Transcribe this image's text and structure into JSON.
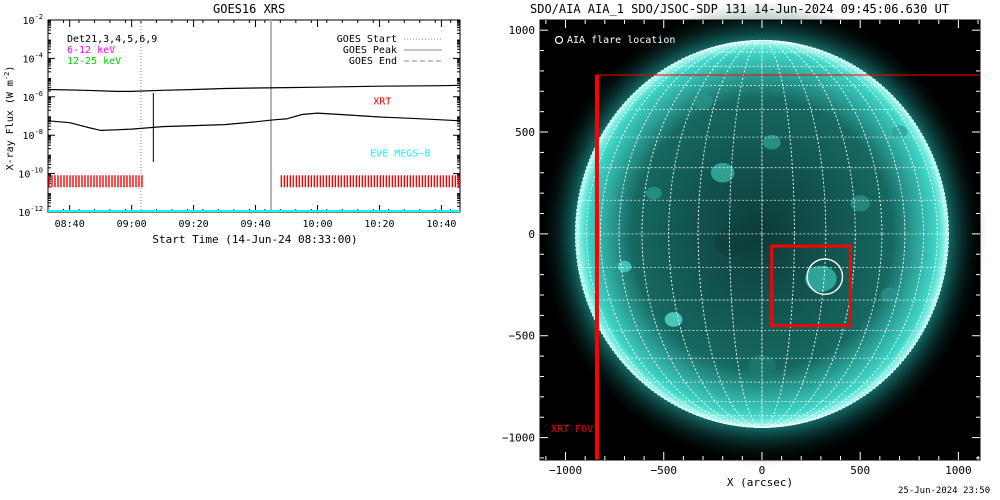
{
  "left_title": "GOES16 XRS",
  "right_title": "SDO/AIA AIA_1 SDO/JSOC-SDP 131 14-Jun-2024 09:45:06.630 UT",
  "timestamp": "25-Jun-2024 23:50",
  "colors": {
    "xrt_red": "#ff0000",
    "eve_cyan": "#00ffff",
    "low_magenta": "#ff00ff",
    "high_green": "#00cc00",
    "sun_teal": "#20b2aa",
    "grid_white": "#ffffff",
    "divider_gray": "#b4b4b4",
    "legend_line_gray": "#888888"
  },
  "chart_data": [
    {
      "type": "line",
      "xlabel": "Start Time (14-Jun-24 08:33:00)",
      "ylabel": "X-ray Flux (W m",
      "ylabel_sup": "-2",
      "ylabel_close": ")",
      "y_scale": "log",
      "ylim_exp": [
        -12,
        -2
      ],
      "xlim": [
        "08:33",
        "10:46"
      ],
      "yticks": [
        {
          "mant": "10",
          "exp": "-2",
          "v": -2
        },
        {
          "mant": "10",
          "exp": "-4",
          "v": -4
        },
        {
          "mant": "10",
          "exp": "-6",
          "v": -6
        },
        {
          "mant": "10",
          "exp": "-8",
          "v": -8
        },
        {
          "mant": "10",
          "exp": "-10",
          "v": -10
        },
        {
          "mant": "10",
          "exp": "-12",
          "v": -12
        }
      ],
      "xticks": [
        {
          "label": "08:40",
          "t": "08:40"
        },
        {
          "label": "09:00",
          "t": "09:00"
        },
        {
          "label": "09:20",
          "t": "09:20"
        },
        {
          "label": "09:40",
          "t": "09:40"
        },
        {
          "label": "10:00",
          "t": "10:00"
        },
        {
          "label": "10:20",
          "t": "10:20"
        },
        {
          "label": "10:40",
          "t": "10:40"
        }
      ],
      "legend_left": [
        {
          "text": "Det21,3,4,5,6,9",
          "color": "#000000"
        },
        {
          "text": "6-12 keV",
          "color": "#ff00ff"
        },
        {
          "text": "12-25 keV",
          "color": "#00cc00"
        }
      ],
      "legend_right": [
        {
          "text": "GOES Start",
          "dash": "1,2"
        },
        {
          "text": "GOES Peak",
          "dash": ""
        },
        {
          "text": "GOES End",
          "dash": "5,3"
        }
      ],
      "series": [
        {
          "color": "#000000",
          "points": [
            [
              "08:33",
              -5.62
            ],
            [
              "08:45",
              -5.66
            ],
            [
              "08:55",
              -5.72
            ],
            [
              "09:00",
              -5.72
            ],
            [
              "09:10",
              -5.66
            ],
            [
              "09:20",
              -5.62
            ],
            [
              "09:30",
              -5.57
            ],
            [
              "09:40",
              -5.54
            ],
            [
              "09:50",
              -5.52
            ],
            [
              "10:00",
              -5.5
            ],
            [
              "10:20",
              -5.45
            ],
            [
              "10:40",
              -5.42
            ],
            [
              "10:46",
              -5.4
            ]
          ]
        },
        {
          "color": "#000000",
          "points": [
            [
              "08:33",
              -7.25
            ],
            [
              "08:40",
              -7.35
            ],
            [
              "08:46",
              -7.6
            ],
            [
              "08:50",
              -7.75
            ],
            [
              "08:55",
              -7.72
            ],
            [
              "09:00",
              -7.68
            ],
            [
              "09:05",
              -7.62
            ],
            [
              "09:10",
              -7.55
            ],
            [
              "09:20",
              -7.5
            ],
            [
              "09:30",
              -7.45
            ],
            [
              "09:40",
              -7.3
            ],
            [
              "09:46",
              -7.2
            ],
            [
              "09:50",
              -7.15
            ],
            [
              "09:55",
              -6.92
            ],
            [
              "10:00",
              -6.85
            ],
            [
              "10:10",
              -6.95
            ],
            [
              "10:20",
              -7.05
            ],
            [
              "10:30",
              -7.12
            ],
            [
              "10:40",
              -7.2
            ],
            [
              "10:46",
              -7.25
            ]
          ]
        },
        {
          "color": "#00ffff",
          "points": [
            [
              "08:33",
              -11.95
            ],
            [
              "10:46",
              -11.95
            ]
          ]
        }
      ],
      "spike": {
        "t": "09:07",
        "low": -9.4,
        "high": -5.8
      },
      "goes_start_t": "09:03",
      "aia_time_t": "09:45",
      "series_labels": [
        {
          "text": "XRT",
          "color": "#ff0000",
          "t": "10:18",
          "y": -6.4
        },
        {
          "text": "EVE MEGS-B",
          "color": "#00ffff",
          "t": "10:17",
          "y": -9.1
        }
      ],
      "observation_windows": [
        {
          "start": "08:33",
          "end": "09:04"
        },
        {
          "start": "09:48",
          "end": "10:46"
        }
      ],
      "observation_level": -10.4
    },
    {
      "type": "image",
      "xlabel": "X (arcsec)",
      "xlim": [
        -1130,
        1110
      ],
      "ylim": [
        -1110,
        1050
      ],
      "xticks": [
        {
          "label": "−1000",
          "v": -1000
        },
        {
          "label": "−500",
          "v": -500
        },
        {
          "label": "0",
          "v": 0
        },
        {
          "label": "500",
          "v": 500
        },
        {
          "label": "1000",
          "v": 1000
        }
      ],
      "yticks": [
        {
          "label": "1000",
          "v": 1000
        },
        {
          "label": "500",
          "v": 500
        },
        {
          "label": "0",
          "v": 0
        },
        {
          "label": "−500",
          "v": -500
        },
        {
          "label": "−1000",
          "v": -1000
        }
      ],
      "solar_radius": 950,
      "grid_step_deg": 10,
      "flare_label": "AIA flare location",
      "flare": {
        "x": 320,
        "y": -210,
        "r": 90
      },
      "xrt_fov_label": "XRT FOV",
      "xrt_fov": {
        "x0": -840,
        "y0": -1110,
        "x1": 1110,
        "y1": 780
      },
      "xrt_zoom": {
        "x0": 50,
        "y0": -450,
        "x1": 450,
        "y1": -60
      }
    }
  ]
}
